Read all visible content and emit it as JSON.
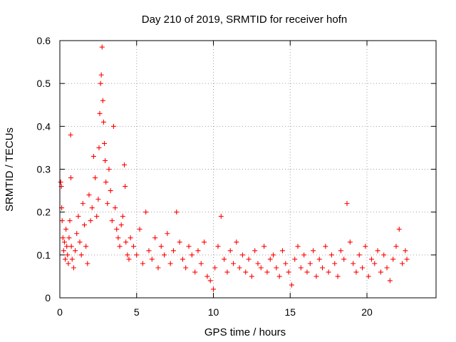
{
  "chart_data": {
    "type": "scatter",
    "title": "Day 210 of 2019, SRMTID for receiver hofn",
    "xlabel": "GPS time / hours",
    "ylabel": "SRMTID / TECUs",
    "xlim": [
      0,
      24.5
    ],
    "ylim": [
      0,
      0.6
    ],
    "xticks": [
      0,
      5,
      10,
      15,
      20
    ],
    "xtick_labels": [
      "0",
      "5",
      "10",
      "15",
      "20"
    ],
    "yticks": [
      0,
      0.1,
      0.2,
      0.3,
      0.4,
      0.5,
      0.6
    ],
    "ytick_labels": [
      "0",
      "0.1",
      "0.2",
      "0.3",
      "0.4",
      "0.5",
      "0.6"
    ],
    "grid": true,
    "marker": "plus",
    "color": "#ff0000",
    "series": [
      {
        "name": "SRMTID",
        "points": [
          [
            0.05,
            0.27
          ],
          [
            0.1,
            0.26
          ],
          [
            0.12,
            0.21
          ],
          [
            0.15,
            0.18
          ],
          [
            0.2,
            0.14
          ],
          [
            0.25,
            0.11
          ],
          [
            0.3,
            0.13
          ],
          [
            0.35,
            0.09
          ],
          [
            0.4,
            0.16
          ],
          [
            0.45,
            0.12
          ],
          [
            0.5,
            0.1
          ],
          [
            0.55,
            0.08
          ],
          [
            0.6,
            0.14
          ],
          [
            0.65,
            0.18
          ],
          [
            0.7,
            0.38
          ],
          [
            0.72,
            0.28
          ],
          [
            0.75,
            0.12
          ],
          [
            0.8,
            0.09
          ],
          [
            0.9,
            0.07
          ],
          [
            1.0,
            0.11
          ],
          [
            1.1,
            0.15
          ],
          [
            1.2,
            0.19
          ],
          [
            1.3,
            0.13
          ],
          [
            1.4,
            0.1
          ],
          [
            1.5,
            0.22
          ],
          [
            1.6,
            0.17
          ],
          [
            1.7,
            0.12
          ],
          [
            1.8,
            0.08
          ],
          [
            1.9,
            0.24
          ],
          [
            2.0,
            0.18
          ],
          [
            2.1,
            0.21
          ],
          [
            2.2,
            0.33
          ],
          [
            2.3,
            0.28
          ],
          [
            2.4,
            0.19
          ],
          [
            2.5,
            0.23
          ],
          [
            2.55,
            0.35
          ],
          [
            2.6,
            0.43
          ],
          [
            2.65,
            0.5
          ],
          [
            2.7,
            0.52
          ],
          [
            2.75,
            0.585
          ],
          [
            2.8,
            0.46
          ],
          [
            2.85,
            0.41
          ],
          [
            2.9,
            0.36
          ],
          [
            2.95,
            0.32
          ],
          [
            3.0,
            0.27
          ],
          [
            3.1,
            0.22
          ],
          [
            3.2,
            0.3
          ],
          [
            3.3,
            0.25
          ],
          [
            3.4,
            0.18
          ],
          [
            3.5,
            0.4
          ],
          [
            3.6,
            0.21
          ],
          [
            3.7,
            0.16
          ],
          [
            3.8,
            0.14
          ],
          [
            3.9,
            0.12
          ],
          [
            4.0,
            0.17
          ],
          [
            4.1,
            0.19
          ],
          [
            4.2,
            0.31
          ],
          [
            4.25,
            0.26
          ],
          [
            4.3,
            0.13
          ],
          [
            4.4,
            0.1
          ],
          [
            4.5,
            0.09
          ],
          [
            4.6,
            0.14
          ],
          [
            4.8,
            0.12
          ],
          [
            5.0,
            0.1
          ],
          [
            5.2,
            0.16
          ],
          [
            5.4,
            0.08
          ],
          [
            5.6,
            0.2
          ],
          [
            5.8,
            0.11
          ],
          [
            6.0,
            0.09
          ],
          [
            6.2,
            0.14
          ],
          [
            6.4,
            0.07
          ],
          [
            6.6,
            0.12
          ],
          [
            6.8,
            0.1
          ],
          [
            7.0,
            0.15
          ],
          [
            7.2,
            0.08
          ],
          [
            7.4,
            0.11
          ],
          [
            7.6,
            0.2
          ],
          [
            7.8,
            0.13
          ],
          [
            8.0,
            0.09
          ],
          [
            8.2,
            0.07
          ],
          [
            8.4,
            0.12
          ],
          [
            8.6,
            0.1
          ],
          [
            8.8,
            0.06
          ],
          [
            9.0,
            0.11
          ],
          [
            9.2,
            0.08
          ],
          [
            9.4,
            0.13
          ],
          [
            9.6,
            0.05
          ],
          [
            9.8,
            0.04
          ],
          [
            10.0,
            0.02
          ],
          [
            10.1,
            0.07
          ],
          [
            10.3,
            0.12
          ],
          [
            10.5,
            0.19
          ],
          [
            10.7,
            0.09
          ],
          [
            10.9,
            0.06
          ],
          [
            11.1,
            0.11
          ],
          [
            11.3,
            0.08
          ],
          [
            11.5,
            0.13
          ],
          [
            11.7,
            0.07
          ],
          [
            11.9,
            0.1
          ],
          [
            12.1,
            0.06
          ],
          [
            12.3,
            0.09
          ],
          [
            12.5,
            0.05
          ],
          [
            12.7,
            0.11
          ],
          [
            12.9,
            0.08
          ],
          [
            13.1,
            0.07
          ],
          [
            13.3,
            0.12
          ],
          [
            13.5,
            0.06
          ],
          [
            13.7,
            0.09
          ],
          [
            13.9,
            0.1
          ],
          [
            14.1,
            0.07
          ],
          [
            14.3,
            0.05
          ],
          [
            14.5,
            0.11
          ],
          [
            14.7,
            0.08
          ],
          [
            14.9,
            0.06
          ],
          [
            15.1,
            0.03
          ],
          [
            15.3,
            0.09
          ],
          [
            15.5,
            0.12
          ],
          [
            15.7,
            0.07
          ],
          [
            15.9,
            0.1
          ],
          [
            16.1,
            0.06
          ],
          [
            16.3,
            0.08
          ],
          [
            16.5,
            0.11
          ],
          [
            16.7,
            0.05
          ],
          [
            16.9,
            0.09
          ],
          [
            17.1,
            0.07
          ],
          [
            17.3,
            0.12
          ],
          [
            17.5,
            0.06
          ],
          [
            17.7,
            0.1
          ],
          [
            17.9,
            0.08
          ],
          [
            18.1,
            0.05
          ],
          [
            18.3,
            0.11
          ],
          [
            18.5,
            0.09
          ],
          [
            18.7,
            0.22
          ],
          [
            18.9,
            0.13
          ],
          [
            19.1,
            0.08
          ],
          [
            19.3,
            0.06
          ],
          [
            19.5,
            0.1
          ],
          [
            19.7,
            0.07
          ],
          [
            19.9,
            0.12
          ],
          [
            20.1,
            0.05
          ],
          [
            20.3,
            0.09
          ],
          [
            20.5,
            0.08
          ],
          [
            20.7,
            0.11
          ],
          [
            20.9,
            0.06
          ],
          [
            21.1,
            0.1
          ],
          [
            21.3,
            0.07
          ],
          [
            21.5,
            0.04
          ],
          [
            21.7,
            0.09
          ],
          [
            21.9,
            0.12
          ],
          [
            22.1,
            0.16
          ],
          [
            22.3,
            0.08
          ],
          [
            22.5,
            0.11
          ],
          [
            22.6,
            0.09
          ]
        ]
      }
    ]
  }
}
